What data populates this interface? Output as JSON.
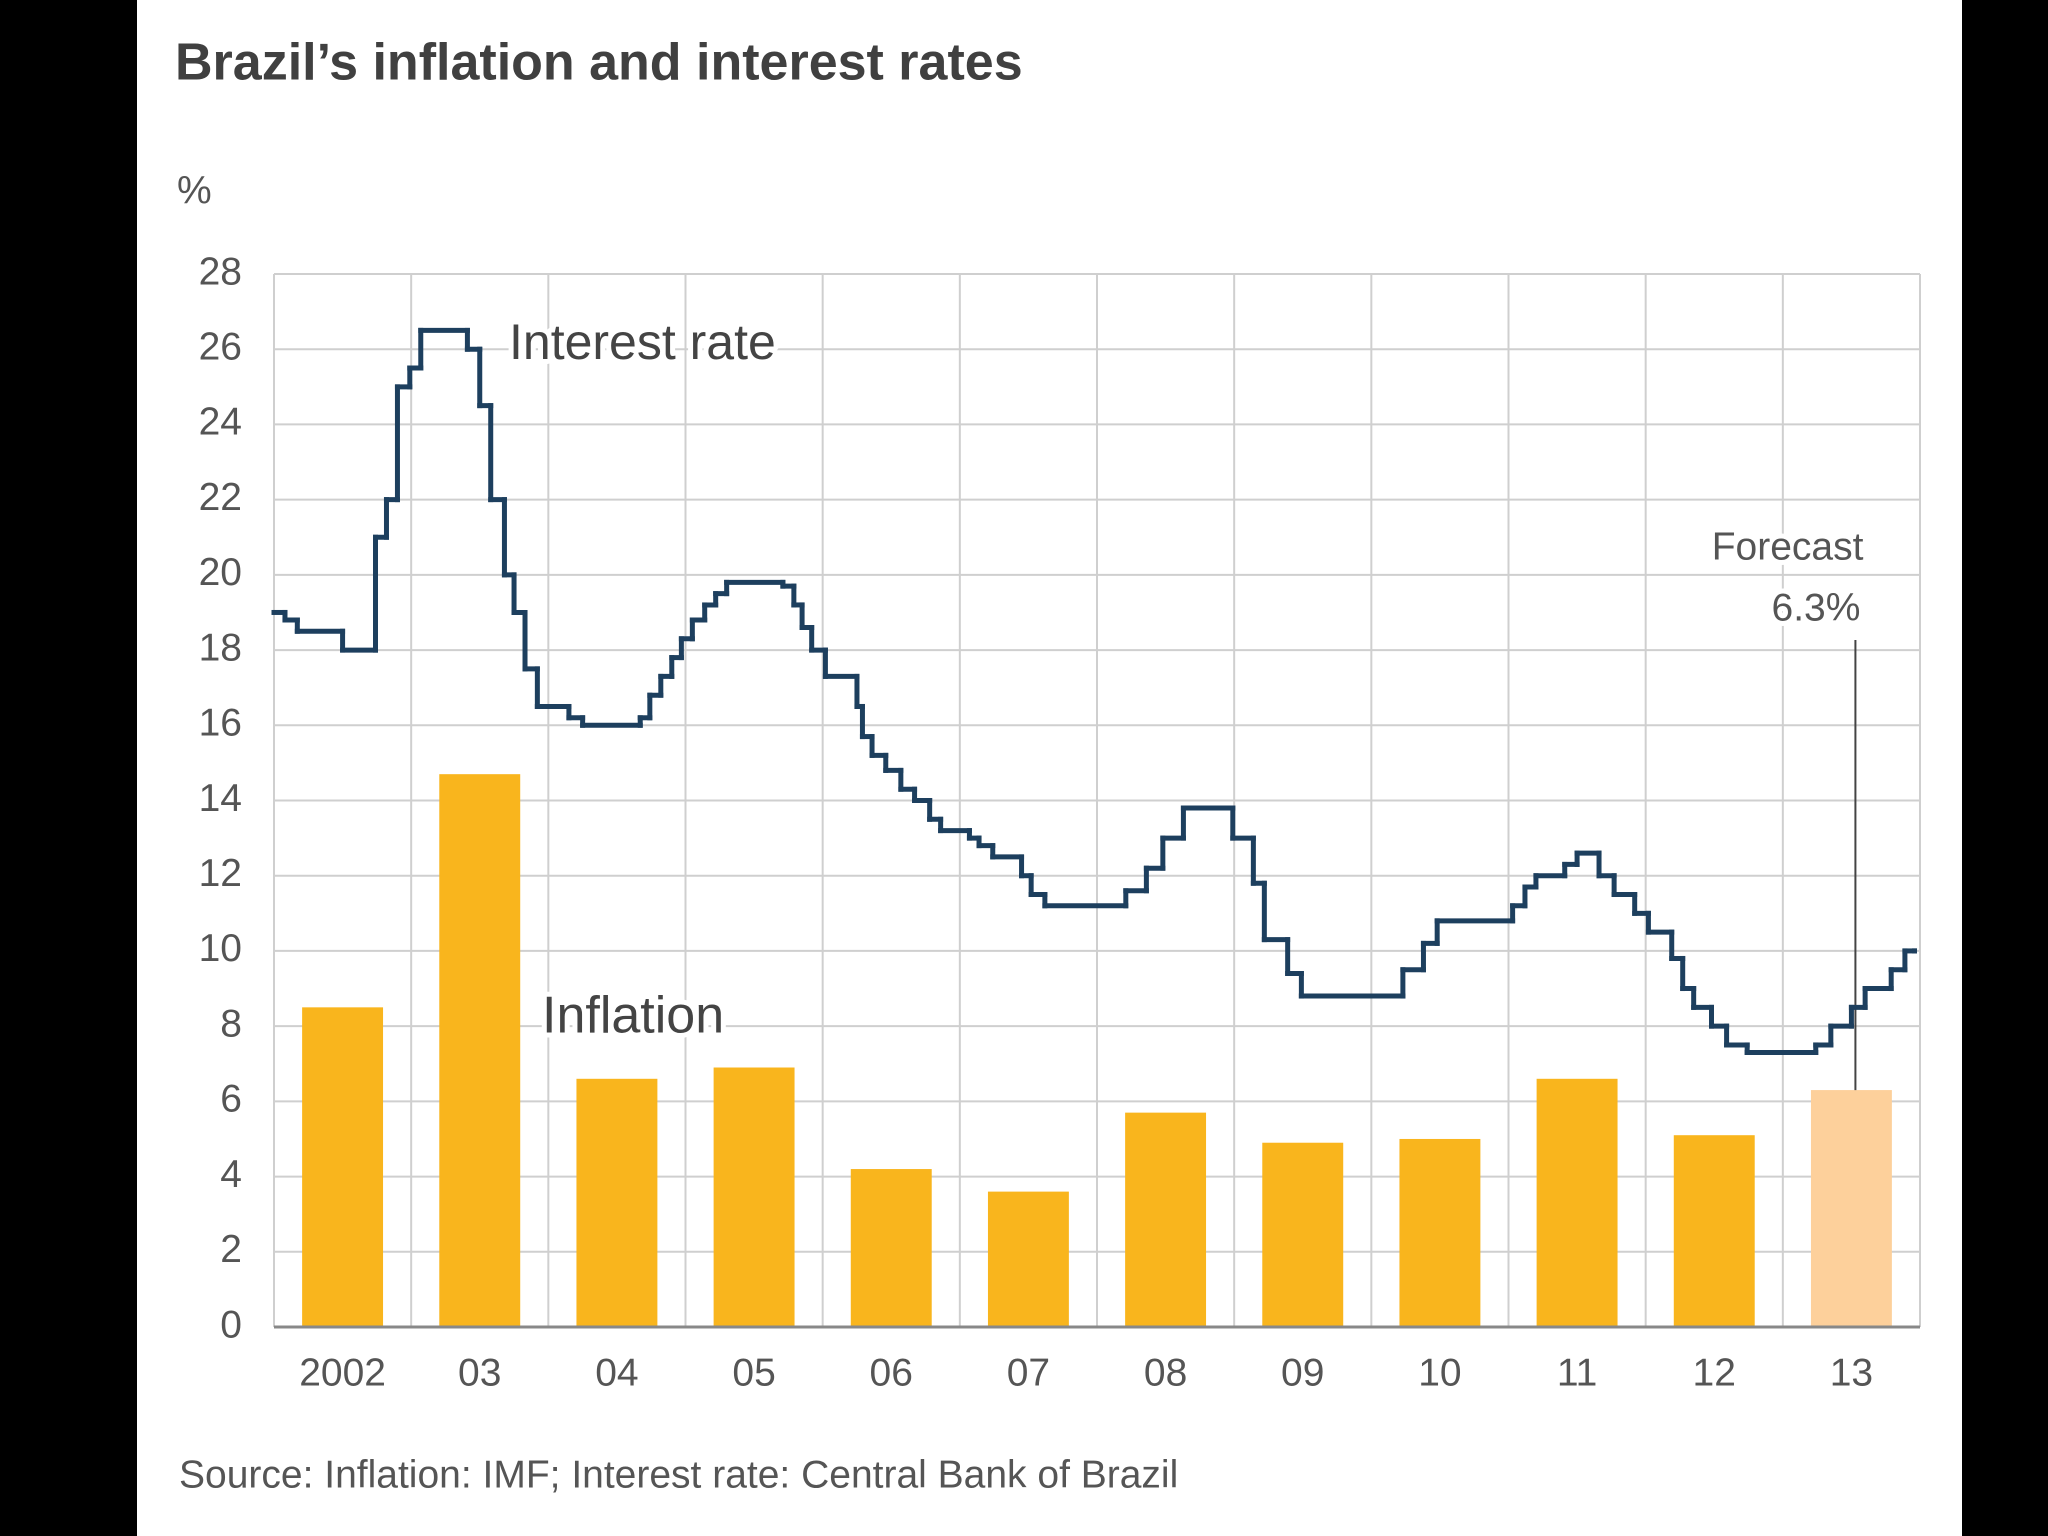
{
  "chart_data": {
    "type": "bar",
    "title": "Brazil’s inflation and interest rates",
    "y_label": "%",
    "source": "Source: Inflation: IMF; Interest rate: Central Bank of Brazil",
    "categories": [
      "2002",
      "03",
      "04",
      "05",
      "06",
      "07",
      "08",
      "09",
      "10",
      "11",
      "12",
      "13"
    ],
    "xlim": [
      2002,
      2014
    ],
    "ylim": [
      0,
      28
    ],
    "yticks": [
      0,
      2,
      4,
      6,
      8,
      10,
      12,
      14,
      16,
      18,
      20,
      22,
      24,
      26,
      28
    ],
    "grid": true,
    "annotation": "Forecast",
    "series": [
      {
        "name": "Inflation",
        "type": "bar",
        "colors": [
          "#f9b51d",
          "#f9b51d",
          "#f9b51d",
          "#f9b51d",
          "#f9b51d",
          "#f9b51d",
          "#f9b51d",
          "#f9b51d",
          "#f9b51d",
          "#f9b51d",
          "#f9b51d",
          "#fdd09b"
        ],
        "values": [
          8.5,
          14.7,
          6.6,
          6.9,
          4.2,
          3.6,
          5.7,
          4.9,
          5.0,
          6.6,
          5.1,
          6.3
        ],
        "value_labels": [
          null,
          null,
          null,
          null,
          null,
          null,
          null,
          null,
          null,
          null,
          null,
          "6.3%"
        ]
      },
      {
        "name": "Interest rate",
        "type": "step",
        "color": "#1d3f5e",
        "x": [
          2002.0,
          2002.08,
          2002.17,
          2002.5,
          2002.74,
          2002.82,
          2002.9,
          2002.99,
          2003.07,
          2003.41,
          2003.5,
          2003.58,
          2003.68,
          2003.75,
          2003.83,
          2003.92,
          2004.15,
          2004.25,
          2004.67,
          2004.74,
          2004.82,
          2004.9,
          2004.97,
          2005.05,
          2005.14,
          2005.22,
          2005.3,
          2005.71,
          2005.79,
          2005.85,
          2005.92,
          2006.02,
          2006.25,
          2006.29,
          2006.36,
          2006.46,
          2006.57,
          2006.67,
          2006.78,
          2006.86,
          2007.07,
          2007.14,
          2007.24,
          2007.45,
          2007.52,
          2007.62,
          2008.21,
          2008.36,
          2008.48,
          2008.63,
          2008.99,
          2009.14,
          2009.22,
          2009.39,
          2009.49,
          2010.23,
          2010.38,
          2010.48,
          2011.03,
          2011.12,
          2011.2,
          2011.41,
          2011.5,
          2011.66,
          2011.77,
          2011.92,
          2012.02,
          2012.19,
          2012.27,
          2012.35,
          2012.48,
          2012.59,
          2012.74,
          2013.24,
          2013.35,
          2013.5,
          2013.6,
          2013.79,
          2013.89,
          2013.96
        ],
        "values": [
          19.0,
          18.8,
          18.5,
          18.0,
          21.0,
          22.0,
          25.0,
          25.5,
          26.5,
          26.0,
          24.5,
          22.0,
          20.0,
          19.0,
          17.5,
          16.5,
          16.2,
          16.0,
          16.2,
          16.8,
          17.3,
          17.8,
          18.3,
          18.8,
          19.2,
          19.5,
          19.8,
          19.7,
          19.2,
          18.6,
          18.0,
          17.3,
          16.5,
          15.7,
          15.2,
          14.8,
          14.3,
          14.0,
          13.5,
          13.2,
          13.0,
          12.8,
          12.5,
          12.0,
          11.5,
          11.2,
          11.6,
          12.2,
          13.0,
          13.8,
          13.0,
          11.8,
          10.3,
          9.4,
          8.8,
          9.5,
          10.2,
          10.8,
          11.2,
          11.7,
          12.0,
          12.3,
          12.6,
          12.0,
          11.5,
          11.0,
          10.5,
          9.8,
          9.0,
          8.5,
          8.0,
          7.5,
          7.3,
          7.5,
          8.0,
          8.5,
          9.0,
          9.5,
          10.0,
          10.0
        ]
      }
    ]
  }
}
